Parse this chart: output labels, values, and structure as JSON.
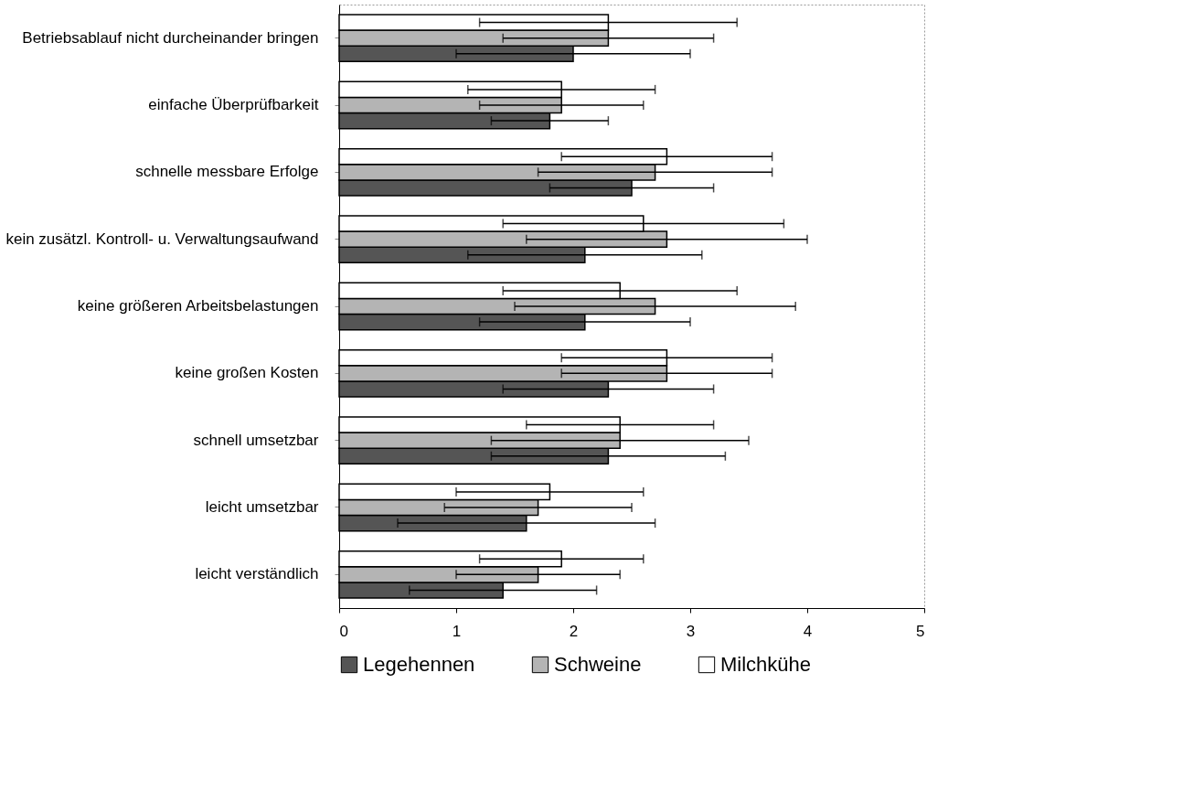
{
  "chart_data": {
    "type": "bar",
    "orientation": "horizontal",
    "categories": [
      "Betriebsablauf nicht durcheinander bringen",
      "einfache Überprüfbarkeit",
      "schnelle messbare Erfolge",
      "kein zusätzl. Kontroll- u. Verwaltungsaufwand",
      "keine größeren Arbeitsbelastungen",
      "keine großen Kosten",
      "schnell umsetzbar",
      "leicht umsetzbar",
      "leicht verständlich"
    ],
    "series": [
      {
        "name": "Legehennen",
        "color": "#555555",
        "values": [
          2.0,
          1.8,
          2.5,
          2.1,
          2.1,
          2.3,
          2.3,
          1.6,
          1.4
        ],
        "errors": [
          [
            1.0,
            3.0
          ],
          [
            1.3,
            2.3
          ],
          [
            1.8,
            3.2
          ],
          [
            1.1,
            3.1
          ],
          [
            1.2,
            3.0
          ],
          [
            1.4,
            3.2
          ],
          [
            1.3,
            3.3
          ],
          [
            0.5,
            2.7
          ],
          [
            0.6,
            2.2
          ]
        ]
      },
      {
        "name": "Schweine",
        "color": "#b4b4b4",
        "values": [
          2.3,
          1.9,
          2.7,
          2.8,
          2.7,
          2.8,
          2.4,
          1.7,
          1.7
        ],
        "errors": [
          [
            1.4,
            3.2
          ],
          [
            1.2,
            2.6
          ],
          [
            1.7,
            3.7
          ],
          [
            1.6,
            4.0
          ],
          [
            1.5,
            3.9
          ],
          [
            1.9,
            3.7
          ],
          [
            1.3,
            3.5
          ],
          [
            0.9,
            2.5
          ],
          [
            1.0,
            2.4
          ]
        ]
      },
      {
        "name": "Milchkühe",
        "color": "#ffffff",
        "values": [
          2.3,
          1.9,
          2.8,
          2.6,
          2.4,
          2.8,
          2.4,
          1.8,
          1.9
        ],
        "errors": [
          [
            1.2,
            3.4
          ],
          [
            1.1,
            2.7
          ],
          [
            1.9,
            3.7
          ],
          [
            1.4,
            3.8
          ],
          [
            1.4,
            3.4
          ],
          [
            1.9,
            3.7
          ],
          [
            1.6,
            3.2
          ],
          [
            1.0,
            2.6
          ],
          [
            1.2,
            2.6
          ]
        ]
      }
    ],
    "xlim": [
      0,
      5
    ],
    "xticks": [
      0,
      1,
      2,
      3,
      4,
      5
    ],
    "grid": false,
    "legend": "bottom"
  }
}
